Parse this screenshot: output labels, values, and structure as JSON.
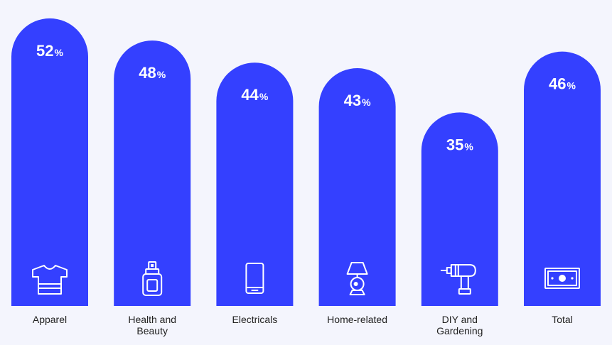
{
  "chart_data": {
    "type": "bar",
    "title": "",
    "xlabel": "",
    "ylabel": "",
    "unit": "%",
    "ylim": [
      0,
      55
    ],
    "bar_color": "#3440ff",
    "background": "#f4f5fd",
    "categories": [
      "Apparel",
      "Health and Beauty",
      "Electricals",
      "Home-related",
      "DIY and Gardening",
      "Total"
    ],
    "category_lines": [
      [
        "Apparel"
      ],
      [
        "Health and",
        "Beauty"
      ],
      [
        "Electricals"
      ],
      [
        "Home-related"
      ],
      [
        "DIY and",
        "Gardening"
      ],
      [
        "Total"
      ]
    ],
    "values": [
      52,
      48,
      44,
      43,
      35,
      46
    ],
    "value_labels": [
      "52",
      "48",
      "44",
      "43",
      "35",
      "46"
    ],
    "icons": [
      "tshirt-icon",
      "spray-bottle-icon",
      "smartphone-icon",
      "lamp-icon",
      "drill-icon",
      "banknote-icon"
    ]
  }
}
